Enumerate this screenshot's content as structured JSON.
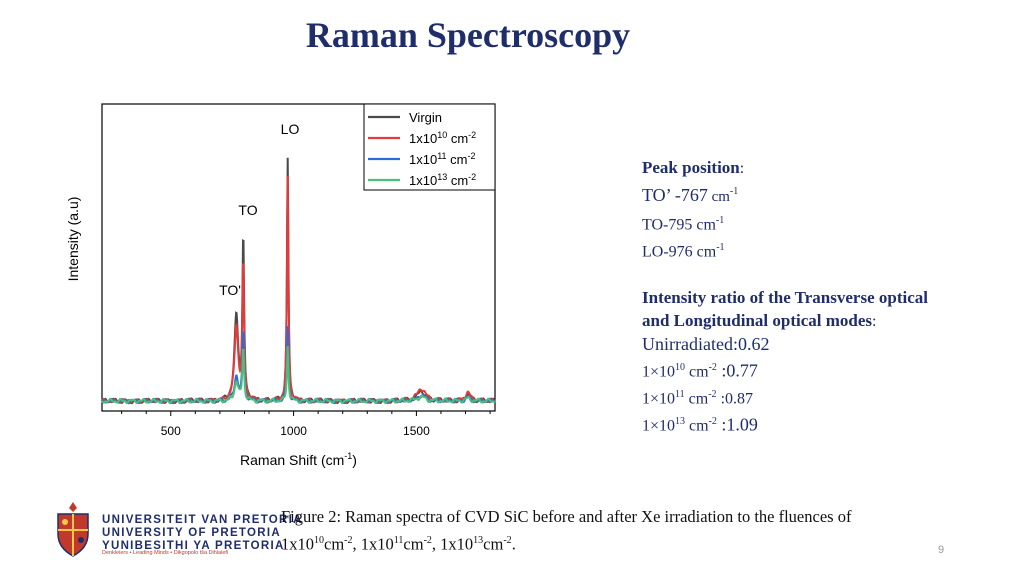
{
  "slide": {
    "title": "Raman Spectroscopy",
    "page_number": "9"
  },
  "chart_data": {
    "type": "line",
    "xlabel": "Raman Shift (cm",
    "xlabel_sup": "-1",
    "xlabel_end": ")",
    "ylabel": "Intensity (a.u)",
    "xlim": [
      220,
      1820
    ],
    "ylim": [
      0,
      1
    ],
    "x_ticks": [
      500,
      1000,
      1500
    ],
    "legend_position": "top-right",
    "peak_labels": [
      {
        "text": "LO",
        "x": 976
      },
      {
        "text": "TO",
        "x": 795
      },
      {
        "text": "TO'",
        "x": 767
      }
    ],
    "colors": {
      "virgin": "#4a4a4a",
      "e10": "#e23b3b",
      "e11": "#2b6fd6",
      "e13": "#4cbf78"
    },
    "series": [
      {
        "name": "Virgin",
        "legend_sup": "",
        "peaks": [
          {
            "x": 767,
            "y": 0.31
          },
          {
            "x": 795,
            "y": 0.58
          },
          {
            "x": 976,
            "y": 0.87
          },
          {
            "x": 1520,
            "y": 0.035
          },
          {
            "x": 1710,
            "y": 0.025
          }
        ]
      },
      {
        "name": "1x10",
        "legend_sup": "10",
        "legend_unit": " cm",
        "legend_unit_sup": "-2",
        "peaks": [
          {
            "x": 767,
            "y": 0.27
          },
          {
            "x": 795,
            "y": 0.49
          },
          {
            "x": 976,
            "y": 0.81
          },
          {
            "x": 1520,
            "y": 0.045
          },
          {
            "x": 1710,
            "y": 0.03
          }
        ]
      },
      {
        "name": "1x10",
        "legend_sup": "11",
        "legend_unit": " cm",
        "legend_unit_sup": "-2",
        "peaks": [
          {
            "x": 767,
            "y": 0.09
          },
          {
            "x": 795,
            "y": 0.25
          },
          {
            "x": 976,
            "y": 0.27
          },
          {
            "x": 1520,
            "y": 0.02
          },
          {
            "x": 1710,
            "y": 0.012
          }
        ]
      },
      {
        "name": "1x10",
        "legend_sup": "13",
        "legend_unit": " cm",
        "legend_unit_sup": "-2",
        "peaks": [
          {
            "x": 767,
            "y": 0.07
          },
          {
            "x": 795,
            "y": 0.19
          },
          {
            "x": 976,
            "y": 0.2
          },
          {
            "x": 1520,
            "y": 0.015
          },
          {
            "x": 1710,
            "y": 0.01
          }
        ]
      }
    ]
  },
  "info": {
    "peak_heading": "Peak position",
    "peak_heading_colon": ":",
    "to_prime": "TO’ -767",
    "to_prime_unit": " cm",
    "to": "TO-795",
    "to_unit": " cm",
    "lo": "LO-976",
    "lo_unit": " cm",
    "unit_sup": "-1",
    "ratio_heading_1": "Intensity ratio of the Transverse optical",
    "ratio_heading_2": "and Longitudinal optical modes",
    "ratio_heading_colon": ":",
    "unirradiated": "Unirradiated:0.62",
    "r10_base": "1×10",
    "r10_exp": "10",
    "r10_val": " :0.77",
    "r11_base": "1×10",
    "r11_exp": "11",
    "r11_val": " :0.87",
    "r13_base": "1×10",
    "r13_exp": "13",
    "r13_val": " :1.09",
    "cm": " cm",
    "cm_sup": "-2"
  },
  "caption": {
    "text1": "Figure 2:  Raman spectra of CVD SiC before and after Xe irradiation to the fluences of",
    "p1": "1x10",
    "e1": "10",
    "u1": "cm",
    "s1": "-2",
    "p2": ", 1x10",
    "e2": "11",
    "u2": "cm",
    "s2": "-2",
    "p3": ", 1x10",
    "e3": "13",
    "u3": "cm",
    "s3": "-2",
    "end": "."
  },
  "logo": {
    "line1": "UNIVERSITEIT VAN PRETORIA",
    "line2": "UNIVERSITY OF PRETORIA",
    "line3": "YUNIBESITHI YA PRETORIA",
    "motto": "Denkleiers • Leading Minds • Dikgopolo tša Dihlalefi"
  }
}
